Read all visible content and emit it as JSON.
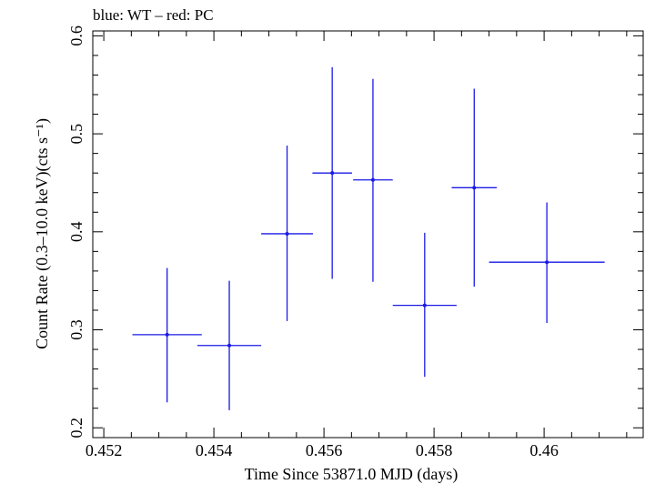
{
  "chart_data": {
    "type": "scatter",
    "title": "blue: WT – red: PC",
    "xlabel": "Time Since 53871.0 MJD (days)",
    "ylabel": "Count Rate (0.3–10.0 keV)(cts s⁻¹)",
    "xlim": [
      0.4518,
      0.4618
    ],
    "ylim": [
      0.19,
      0.605
    ],
    "x_ticks": [
      0.452,
      0.454,
      0.456,
      0.458,
      0.46
    ],
    "x_tick_labels": [
      "0.452",
      "0.454",
      "0.456",
      "0.458",
      "0.46"
    ],
    "y_ticks": [
      0.2,
      0.3,
      0.4,
      0.5,
      0.6
    ],
    "y_tick_labels": [
      "0.2",
      "0.3",
      "0.4",
      "0.5",
      "0.6"
    ],
    "grid": false,
    "series": [
      {
        "color": "#1a1ae6",
        "points": [
          {
            "x": 0.45315,
            "y": 0.295,
            "xerr": [
              0.00063,
              0.00063
            ],
            "yerr": [
              0.069,
              0.068
            ]
          },
          {
            "x": 0.45428,
            "y": 0.284,
            "xerr": [
              0.00058,
              0.00058
            ],
            "yerr": [
              0.066,
              0.066
            ]
          },
          {
            "x": 0.45533,
            "y": 0.398,
            "xerr": [
              0.00047,
              0.00047
            ],
            "yerr": [
              0.089,
              0.09
            ]
          },
          {
            "x": 0.45615,
            "y": 0.46,
            "xerr": [
              0.00036,
              0.00036
            ],
            "yerr": [
              0.108,
              0.108
            ]
          },
          {
            "x": 0.45689,
            "y": 0.453,
            "xerr": [
              0.00036,
              0.00036
            ],
            "yerr": [
              0.104,
              0.103
            ]
          },
          {
            "x": 0.45783,
            "y": 0.325,
            "xerr": [
              0.00058,
              0.00058
            ],
            "yerr": [
              0.073,
              0.074
            ]
          },
          {
            "x": 0.45873,
            "y": 0.445,
            "xerr": [
              0.00041,
              0.00041
            ],
            "yerr": [
              0.101,
              0.101
            ]
          },
          {
            "x": 0.46005,
            "y": 0.369,
            "xerr": [
              0.00105,
              0.00105
            ],
            "yerr": [
              0.062,
              0.061
            ]
          }
        ]
      }
    ]
  }
}
